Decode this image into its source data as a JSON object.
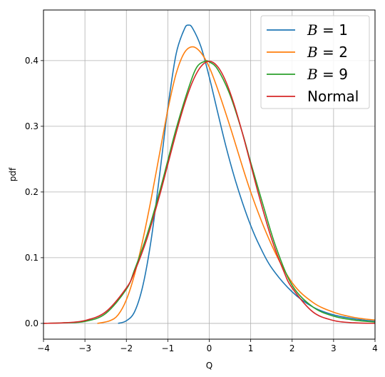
{
  "chart_data": {
    "type": "line",
    "xlabel": "Q",
    "ylabel": "pdf",
    "xlim": [
      -4,
      4
    ],
    "ylim": [
      -0.024,
      0.477
    ],
    "xticks": [
      -4,
      -3,
      -2,
      -1,
      0,
      1,
      2,
      3,
      4
    ],
    "xtick_labels": [
      "−4",
      "−3",
      "−2",
      "−1",
      "0",
      "1",
      "2",
      "3",
      "4"
    ],
    "yticks": [
      0.0,
      0.1,
      0.2,
      0.3,
      0.4
    ],
    "ytick_labels": [
      "0.0",
      "0.1",
      "0.2",
      "0.3",
      "0.4"
    ],
    "grid": true,
    "legend_position": "top-right",
    "series": [
      {
        "name": "B = 1",
        "legend_var": "B",
        "legend_eq": " = ",
        "legend_val": "1",
        "color": "#1f77b4",
        "x": [
          -2.2,
          -2.0,
          -1.8,
          -1.6,
          -1.4,
          -1.2,
          -1.0,
          -0.8,
          -0.6,
          -0.5,
          -0.4,
          -0.2,
          0.0,
          0.2,
          0.4,
          0.6,
          0.8,
          1.0,
          1.2,
          1.5,
          2.0,
          2.5,
          3.0,
          3.5,
          4.0
        ],
        "y": [
          0.0,
          0.004,
          0.018,
          0.058,
          0.128,
          0.225,
          0.328,
          0.41,
          0.448,
          0.454,
          0.449,
          0.421,
          0.375,
          0.322,
          0.27,
          0.224,
          0.184,
          0.149,
          0.12,
          0.085,
          0.048,
          0.025,
          0.013,
          0.007,
          0.003
        ]
      },
      {
        "name": "B = 2",
        "legend_var": "B",
        "legend_eq": " = ",
        "legend_val": "2",
        "color": "#ff7f0e",
        "x": [
          -2.7,
          -2.4,
          -2.2,
          -2.0,
          -1.8,
          -1.6,
          -1.4,
          -1.2,
          -1.0,
          -0.8,
          -0.6,
          -0.4,
          -0.2,
          0.0,
          0.2,
          0.5,
          1.0,
          1.5,
          2.0,
          2.5,
          3.0,
          3.5,
          4.0
        ],
        "y": [
          0.0,
          0.004,
          0.013,
          0.036,
          0.075,
          0.128,
          0.19,
          0.258,
          0.325,
          0.38,
          0.412,
          0.421,
          0.412,
          0.39,
          0.357,
          0.3,
          0.2,
          0.12,
          0.062,
          0.032,
          0.017,
          0.009,
          0.005
        ]
      },
      {
        "name": "B = 9",
        "legend_var": "B",
        "legend_eq": " = ",
        "legend_val": "9",
        "color": "#2ca02c",
        "x": [
          -4.0,
          -3.5,
          -3.0,
          -2.5,
          -2.0,
          -1.8,
          -1.5,
          -1.2,
          -1.0,
          -0.8,
          -0.5,
          -0.3,
          -0.1,
          0.0,
          0.2,
          0.5,
          0.8,
          1.0,
          1.3,
          1.6,
          2.0,
          2.5,
          3.0,
          3.5,
          4.0
        ],
        "y": [
          0.0,
          0.001,
          0.003,
          0.015,
          0.052,
          0.082,
          0.135,
          0.2,
          0.248,
          0.296,
          0.358,
          0.39,
          0.399,
          0.398,
          0.387,
          0.348,
          0.29,
          0.245,
          0.18,
          0.118,
          0.058,
          0.025,
          0.011,
          0.005,
          0.002
        ]
      },
      {
        "name": "Normal",
        "color": "#d62728",
        "x": [
          -4.0,
          -3.5,
          -3.0,
          -2.5,
          -2.0,
          -1.8,
          -1.5,
          -1.2,
          -1.0,
          -0.8,
          -0.6,
          -0.4,
          -0.2,
          0.0,
          0.2,
          0.4,
          0.6,
          0.8,
          1.0,
          1.2,
          1.5,
          1.8,
          2.0,
          2.5,
          3.0,
          3.5,
          4.0
        ],
        "y": [
          0.0001,
          0.0009,
          0.0044,
          0.0175,
          0.054,
          0.079,
          0.1295,
          0.1942,
          0.242,
          0.2897,
          0.3332,
          0.3683,
          0.391,
          0.3989,
          0.391,
          0.3683,
          0.3332,
          0.2897,
          0.242,
          0.1942,
          0.1295,
          0.079,
          0.054,
          0.0175,
          0.0044,
          0.0009,
          0.0001
        ]
      }
    ]
  }
}
